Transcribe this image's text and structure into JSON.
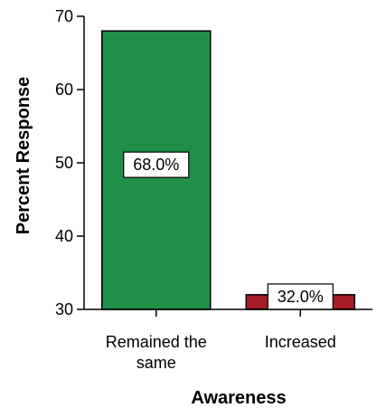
{
  "chart_data": {
    "type": "bar",
    "categories": [
      "Remained the same",
      "Increased"
    ],
    "category_lines": [
      [
        "Remained the",
        "same"
      ],
      [
        "Increased"
      ]
    ],
    "values": [
      68.0,
      32.0
    ],
    "data_labels": [
      "68.0%",
      "32.0%"
    ],
    "colors": [
      "#1f8f4a",
      "#a51c24"
    ],
    "xlabel": "Awareness",
    "ylabel": "Percent Response",
    "ylim": [
      30,
      70
    ],
    "yticks": [
      30,
      40,
      50,
      60,
      70
    ],
    "grid": false
  }
}
